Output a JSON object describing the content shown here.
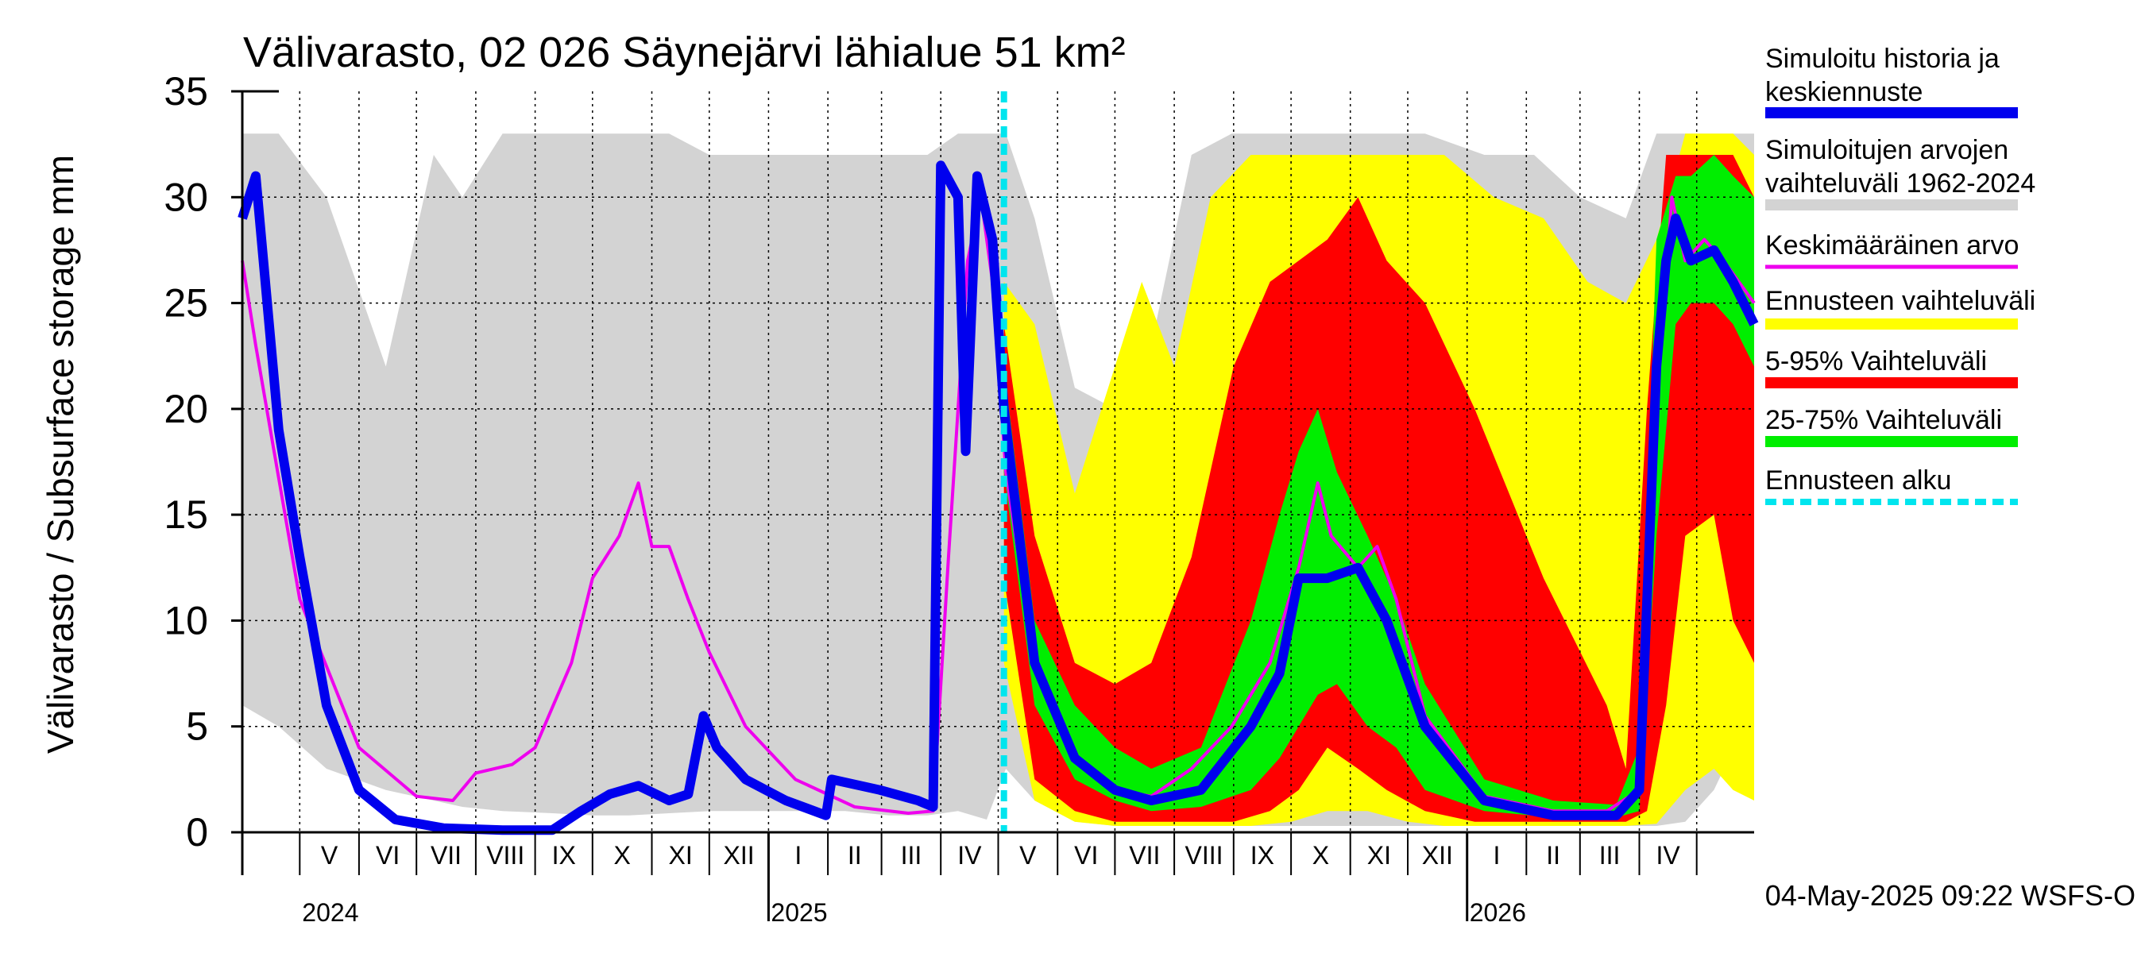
{
  "chart_data": {
    "type": "area",
    "title": "Välivarasto, 02 026 Säynejärvi lähialue 51 km²",
    "ylabel": "Välivarasto / Subsurface storage  mm",
    "xlabel": "",
    "ylim": [
      0,
      35
    ],
    "yticks": [
      "0",
      "5",
      "10",
      "15",
      "20",
      "25",
      "30",
      "35"
    ],
    "xlim": [
      "2024-04-01",
      "2026-05-31"
    ],
    "month_labels": [
      "V",
      "VI",
      "VII",
      "VIII",
      "IX",
      "X",
      "XI",
      "XII",
      "I",
      "II",
      "III",
      "IV",
      "V",
      "VI",
      "VII",
      "VIII",
      "IX",
      "X",
      "XI",
      "XII",
      "I",
      "II",
      "III",
      "IV"
    ],
    "year_labels": [
      {
        "label": "2024",
        "date": "2024-05-01"
      },
      {
        "label": "2025",
        "date": "2025-01-01"
      },
      {
        "label": "2026",
        "date": "2026-01-01"
      }
    ],
    "forecast_start": "2025-05-04",
    "timestamp": "04-May-2025 09:22 WSFS-O",
    "grid": true,
    "legend_position": "right",
    "legend": [
      {
        "key": "history",
        "label": "Simuloitu historia ja keskiennuste",
        "color": "#0000ee"
      },
      {
        "key": "range",
        "label": "Simuloitujen arvojen vaihteluväli 1962-2024",
        "color": "#d3d3d3"
      },
      {
        "key": "mean",
        "label": "Keskimääräinen arvo",
        "color": "#ee00ee"
      },
      {
        "key": "fc_range",
        "label": "Ennusteen vaihteluväli",
        "color": "#ffff00"
      },
      {
        "key": "p5_95",
        "label": "5-95% Vaihteluväli",
        "color": "#ff0000"
      },
      {
        "key": "p25_75",
        "label": "25-75% Vaihteluväli",
        "color": "#00ee00"
      },
      {
        "key": "fc_start",
        "label": "Ennusteen alku",
        "color": "#00e5ee"
      }
    ],
    "series": {
      "range_band": {
        "x": [
          "2024-04-01",
          "2024-04-20",
          "2024-05-15",
          "2024-06-15",
          "2024-07-10",
          "2024-07-25",
          "2024-08-15",
          "2024-09-10",
          "2024-10-01",
          "2024-10-20",
          "2024-11-10",
          "2024-12-01",
          "2024-12-20",
          "2025-01-15",
          "2025-02-10",
          "2025-03-05",
          "2025-03-25",
          "2025-04-10",
          "2025-04-25",
          "2025-05-05",
          "2025-05-20",
          "2025-06-10",
          "2025-07-01",
          "2025-07-20",
          "2025-08-10",
          "2025-08-31",
          "2025-09-25",
          "2025-10-20",
          "2025-11-15",
          "2025-12-10",
          "2026-01-10",
          "2026-02-05",
          "2026-03-01",
          "2026-03-25",
          "2026-04-10",
          "2026-04-25",
          "2026-05-10",
          "2026-05-31"
        ],
        "low": [
          6,
          5,
          3,
          2,
          1.5,
          1.2,
          1,
          0.9,
          0.8,
          0.8,
          0.9,
          1,
          1,
          1,
          1,
          0.8,
          0.8,
          1,
          0.6,
          3,
          1.5,
          0.5,
          0.3,
          0.3,
          0.3,
          0.3,
          0.3,
          0.3,
          0.3,
          0.3,
          0.3,
          0.3,
          0.3,
          0.3,
          0.3,
          0.5,
          2,
          6
        ],
        "high": [
          33,
          33,
          30,
          22,
          32,
          30,
          33,
          33,
          33,
          33,
          33,
          32,
          32,
          32,
          32,
          32,
          32,
          33,
          33,
          33,
          29,
          21,
          20,
          23,
          32,
          33,
          33,
          33,
          33,
          33,
          32,
          32,
          30,
          29,
          33,
          33,
          33,
          33
        ]
      },
      "history": {
        "x": [
          "2024-04-01",
          "2024-04-08",
          "2024-04-20",
          "2024-05-01",
          "2024-05-15",
          "2024-06-01",
          "2024-06-20",
          "2024-07-15",
          "2024-08-15",
          "2024-09-10",
          "2024-09-25",
          "2024-10-10",
          "2024-10-25",
          "2024-11-10",
          "2024-11-20",
          "2024-11-28",
          "2024-12-05",
          "2024-12-20",
          "2025-01-10",
          "2025-01-31",
          "2025-02-03",
          "2025-02-28",
          "2025-03-20",
          "2025-03-28",
          "2025-04-01",
          "2025-04-10",
          "2025-04-14",
          "2025-04-20",
          "2025-04-28",
          "2025-05-04"
        ],
        "y": [
          29,
          31,
          19,
          13,
          6,
          2,
          0.6,
          0.2,
          0.1,
          0.1,
          1,
          1.8,
          2.2,
          1.5,
          1.8,
          5.5,
          4,
          2.5,
          1.5,
          0.8,
          2.5,
          2,
          1.5,
          1.2,
          31.5,
          30,
          18,
          31,
          28,
          20
        ]
      },
      "forecast_median": {
        "x": [
          "2025-05-04",
          "2025-05-20",
          "2025-06-10",
          "2025-07-01",
          "2025-07-20",
          "2025-08-15",
          "2025-09-10",
          "2025-09-25",
          "2025-10-05",
          "2025-10-20",
          "2025-11-05",
          "2025-11-20",
          "2025-12-10",
          "2026-01-10",
          "2026-02-15",
          "2026-03-20",
          "2026-04-01",
          "2026-04-10",
          "2026-04-15",
          "2026-04-20",
          "2026-04-28",
          "2026-05-10",
          "2026-05-20",
          "2026-05-31"
        ],
        "y": [
          20,
          8,
          3.5,
          2,
          1.5,
          2,
          5,
          7.5,
          12,
          12,
          12.5,
          10,
          5,
          1.5,
          0.8,
          0.8,
          2,
          22,
          27,
          29,
          27,
          27.5,
          26,
          24
        ]
      },
      "mean": {
        "x": [
          "2024-04-01",
          "2024-04-08",
          "2024-05-01",
          "2024-06-01",
          "2024-07-01",
          "2024-07-20",
          "2024-08-01",
          "2024-08-20",
          "2024-09-01",
          "2024-09-20",
          "2024-10-01",
          "2024-10-15",
          "2024-10-25",
          "2024-11-01",
          "2024-11-10",
          "2024-11-20",
          "2024-12-01",
          "2024-12-20",
          "2025-01-15",
          "2025-02-15",
          "2025-03-15",
          "2025-03-28",
          "2025-04-05",
          "2025-04-15",
          "2025-04-22",
          "2025-04-28",
          "2025-05-05",
          "2025-05-20",
          "2025-06-10",
          "2025-07-01",
          "2025-07-20",
          "2025-08-10",
          "2025-08-31",
          "2025-09-20",
          "2025-10-05",
          "2025-10-15",
          "2025-10-22",
          "2025-11-05",
          "2025-11-15",
          "2025-11-25",
          "2025-12-10",
          "2026-01-10",
          "2026-02-15",
          "2026-03-15",
          "2026-04-01",
          "2026-04-10",
          "2026-04-18",
          "2026-04-25",
          "2026-05-05",
          "2026-05-15",
          "2026-05-31"
        ],
        "y": [
          27,
          23,
          11,
          4,
          1.7,
          1.5,
          2.8,
          3.2,
          4,
          8,
          12,
          14,
          16.5,
          13.5,
          13.5,
          11,
          8.5,
          5,
          2.5,
          1.2,
          0.9,
          1,
          13,
          27,
          30,
          26,
          17,
          8,
          3.5,
          2,
          1.7,
          3,
          5,
          8,
          12.5,
          16.5,
          14,
          12.5,
          13.5,
          11,
          5.5,
          1.7,
          1,
          1,
          2,
          20,
          30,
          27,
          28,
          27,
          25
        ]
      },
      "p25_75": {
        "x": [
          "2025-05-04",
          "2025-05-20",
          "2025-06-10",
          "2025-07-01",
          "2025-07-20",
          "2025-08-15",
          "2025-09-10",
          "2025-09-25",
          "2025-10-05",
          "2025-10-15",
          "2025-10-25",
          "2025-11-10",
          "2025-11-25",
          "2025-12-10",
          "2026-01-10",
          "2026-02-15",
          "2026-03-20",
          "2026-04-01",
          "2026-04-10",
          "2026-04-20",
          "2026-04-28",
          "2026-05-10",
          "2026-05-20",
          "2026-05-31"
        ],
        "low": [
          17,
          6,
          2.5,
          1.5,
          1,
          1.2,
          2,
          3.5,
          5,
          6.5,
          7,
          5,
          4,
          2,
          1,
          0.7,
          0.7,
          1,
          14,
          24,
          25,
          25,
          24,
          22
        ],
        "high": [
          22,
          10,
          6,
          4,
          3,
          4,
          10,
          15,
          18,
          20,
          17,
          14,
          11,
          7,
          2.5,
          1.5,
          1.3,
          4,
          28,
          31,
          31,
          32,
          31,
          30
        ]
      },
      "p5_95": {
        "x": [
          "2025-05-04",
          "2025-05-20",
          "2025-06-10",
          "2025-07-01",
          "2025-07-20",
          "2025-08-10",
          "2025-09-01",
          "2025-09-20",
          "2025-10-05",
          "2025-10-20",
          "2025-11-05",
          "2025-11-20",
          "2025-12-10",
          "2026-01-05",
          "2026-02-10",
          "2026-03-15",
          "2026-03-25",
          "2026-04-05",
          "2026-04-15",
          "2026-04-25",
          "2026-05-10",
          "2026-05-20",
          "2026-05-31"
        ],
        "low": [
          12,
          2.5,
          1,
          0.5,
          0.5,
          0.5,
          0.5,
          1,
          2,
          4,
          3,
          2,
          1,
          0.5,
          0.5,
          0.5,
          0.5,
          1,
          6,
          14,
          15,
          10,
          8
        ],
        "high": [
          24,
          14,
          8,
          7,
          8,
          13,
          22,
          26,
          27,
          28,
          30,
          27,
          25,
          20,
          12,
          6,
          3,
          20,
          32,
          32,
          32,
          32,
          30
        ]
      },
      "fc_range": {
        "x": [
          "2025-05-04",
          "2025-05-20",
          "2025-06-10",
          "2025-07-01",
          "2025-07-15",
          "2025-08-01",
          "2025-08-20",
          "2025-09-10",
          "2025-10-01",
          "2025-10-20",
          "2025-11-10",
          "2025-12-01",
          "2025-12-20",
          "2026-01-15",
          "2026-02-10",
          "2026-03-05",
          "2026-03-25",
          "2026-04-10",
          "2026-04-25",
          "2026-05-10",
          "2026-05-20",
          "2026-05-31"
        ],
        "low": [
          8,
          1.5,
          0.5,
          0.3,
          0.3,
          0.3,
          0.3,
          0.3,
          0.5,
          1,
          1,
          0.5,
          0.3,
          0.3,
          0.3,
          0.3,
          0.3,
          0.4,
          2,
          3,
          2,
          1.5
        ],
        "high": [
          26,
          24,
          16,
          22,
          26,
          22,
          30,
          32,
          32,
          32,
          32,
          32,
          32,
          30,
          29,
          26,
          25,
          28,
          33,
          33,
          33,
          32
        ]
      }
    }
  }
}
